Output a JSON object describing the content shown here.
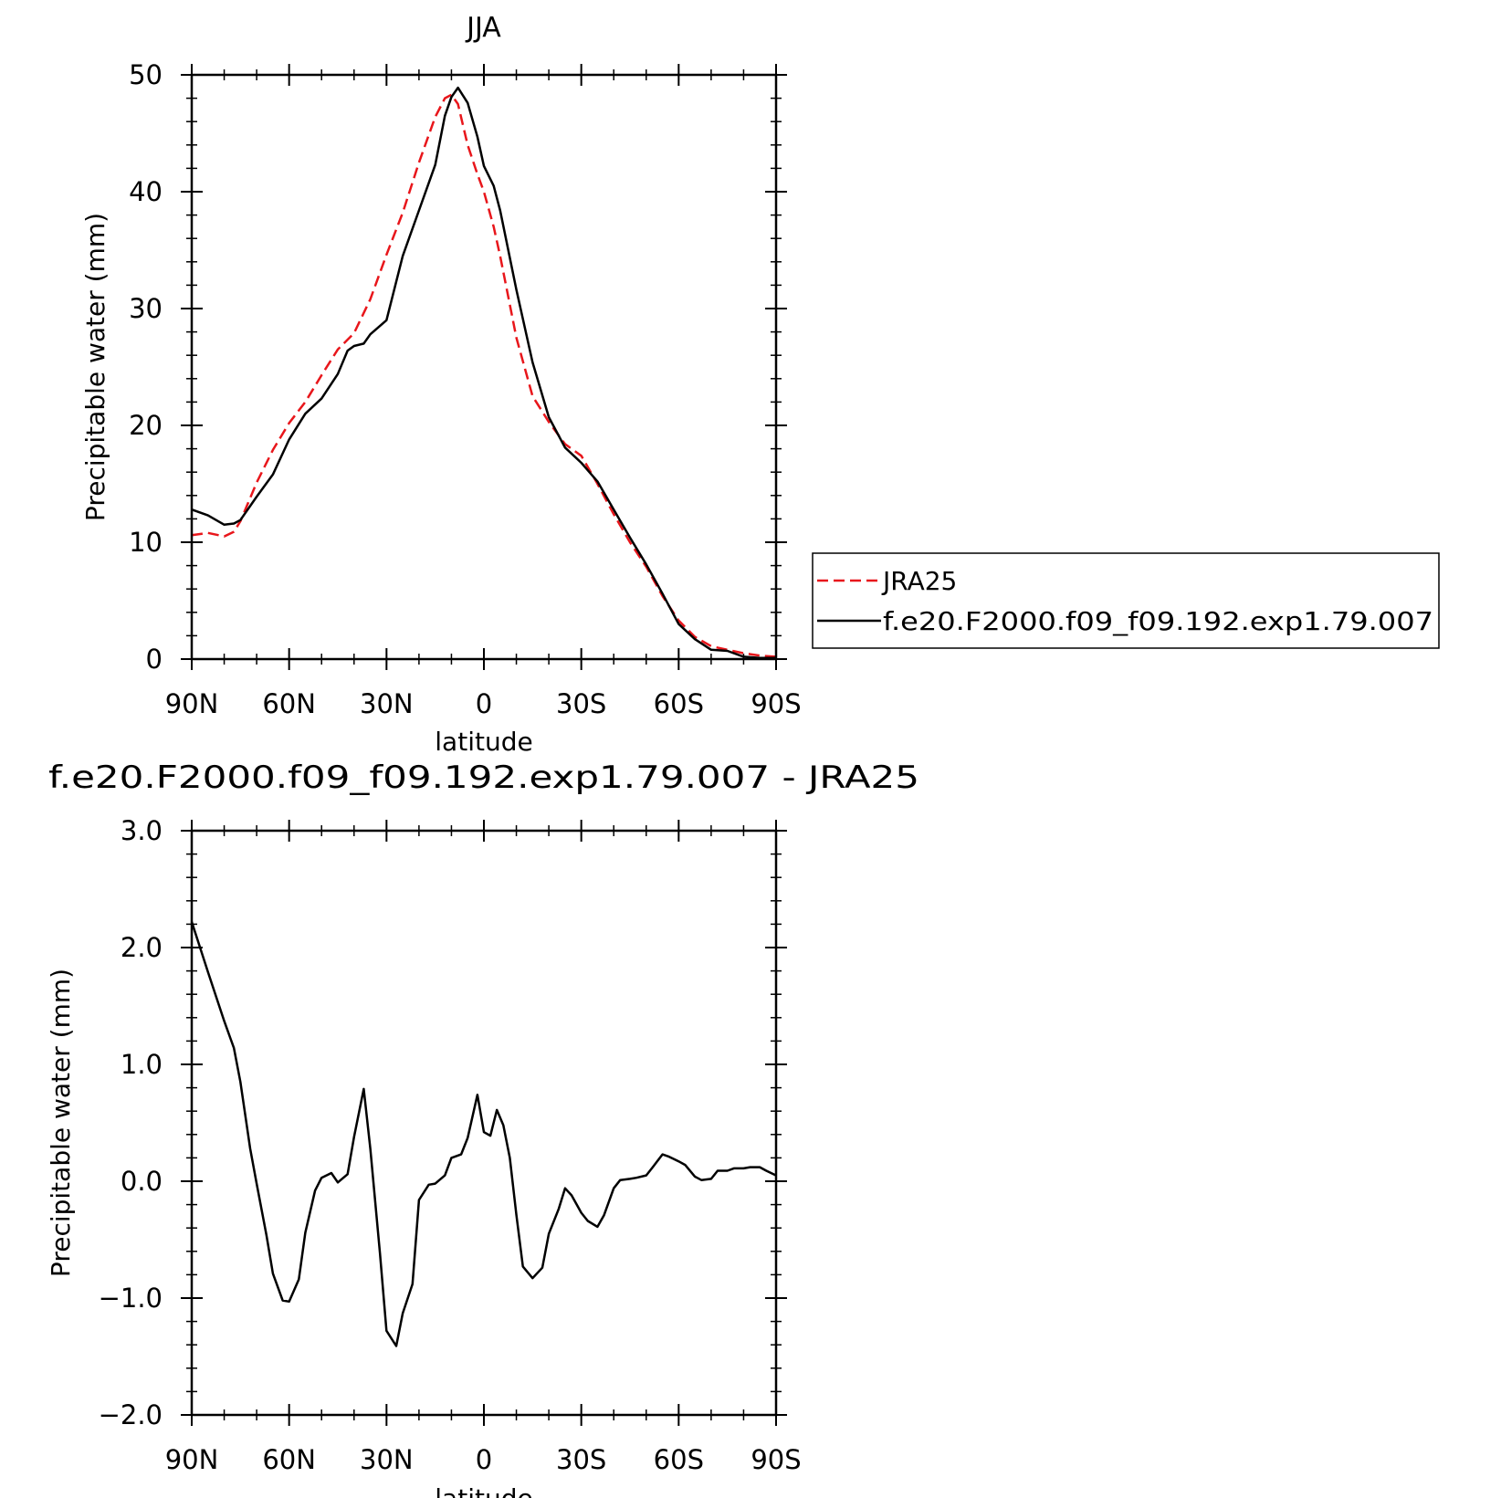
{
  "chart_data": [
    {
      "type": "line",
      "title": "JJA",
      "xlabel": "latitude",
      "ylabel": "Precipitable water (mm)",
      "xlim": [
        90,
        -90
      ],
      "ylim": [
        0,
        50
      ],
      "x_tick_labels": [
        "90N",
        "60N",
        "30N",
        "0",
        "30S",
        "60S",
        "90S"
      ],
      "y_tick_labels": [
        "0",
        "10",
        "20",
        "30",
        "40",
        "50"
      ],
      "legend_placement": "right",
      "series": [
        {
          "name": "JRA25",
          "color": "#e8161b",
          "dash": "dashed",
          "x": [
            90,
            85,
            80,
            77,
            75,
            70,
            65,
            60,
            55,
            50,
            45,
            40,
            35,
            30,
            25,
            20,
            15,
            12,
            10,
            8,
            5,
            2,
            0,
            -3,
            -5,
            -10,
            -15,
            -20,
            -25,
            -30,
            -35,
            -40,
            -45,
            -50,
            -55,
            -60,
            -65,
            -70,
            -75,
            -80,
            -85,
            -90
          ],
          "y": [
            10.6,
            10.8,
            10.5,
            10.9,
            11.8,
            15.1,
            17.9,
            20.2,
            22.0,
            24.3,
            26.5,
            27.9,
            30.8,
            34.6,
            38.2,
            42.5,
            46.4,
            48.0,
            48.3,
            47.5,
            44.0,
            41.5,
            40.0,
            37.0,
            34.5,
            27.5,
            22.5,
            20.3,
            18.4,
            17.4,
            15.0,
            12.4,
            10.0,
            7.9,
            5.4,
            3.3,
            1.9,
            1.1,
            0.8,
            0.5,
            0.3,
            0.2
          ]
        },
        {
          "name": "f.e20.F2000.f09_f09.192.exp1.79.007",
          "color": "#000000",
          "dash": "solid",
          "x": [
            90,
            85,
            80,
            77,
            75,
            70,
            65,
            60,
            55,
            50,
            45,
            42,
            40,
            37,
            35,
            30,
            25,
            20,
            15,
            12,
            10,
            8,
            5,
            2,
            0,
            -3,
            -5,
            -10,
            -15,
            -20,
            -25,
            -30,
            -35,
            -40,
            -45,
            -50,
            -55,
            -60,
            -65,
            -70,
            -75,
            -80,
            -85,
            -90
          ],
          "y": [
            12.8,
            12.3,
            11.5,
            11.6,
            11.9,
            13.9,
            15.8,
            18.8,
            21.0,
            22.3,
            24.4,
            26.4,
            26.8,
            27.0,
            27.8,
            29.0,
            34.5,
            38.4,
            42.3,
            46.5,
            48.1,
            48.9,
            47.6,
            44.7,
            42.2,
            40.5,
            38.4,
            31.6,
            25.4,
            20.7,
            18.1,
            16.8,
            15.2,
            12.8,
            10.4,
            8.1,
            5.6,
            3.0,
            1.7,
            0.8,
            0.7,
            0.2,
            0.1,
            0.1
          ]
        }
      ]
    },
    {
      "type": "line",
      "title": "f.e20.F2000.f09_f09.192.exp1.79.007 - JRA25",
      "xlabel": "latitude",
      "ylabel": "Precipitable water (mm)",
      "xlim": [
        90,
        -90
      ],
      "ylim": [
        -2.0,
        3.0
      ],
      "x_tick_labels": [
        "90N",
        "60N",
        "30N",
        "0",
        "30S",
        "60S",
        "90S"
      ],
      "y_tick_labels": [
        "−2.0",
        "−1.0",
        "0.0",
        "1.0",
        "2.0",
        "3.0"
      ],
      "series": [
        {
          "color": "#000000",
          "x": [
            90,
            85,
            80,
            77,
            75,
            72,
            70,
            67,
            65,
            62,
            60,
            57,
            55,
            52,
            50,
            47,
            45,
            42,
            40,
            37,
            35,
            32,
            30,
            27,
            25,
            22,
            20,
            17,
            15,
            12,
            10,
            7,
            5,
            2,
            0,
            -2,
            -4,
            -6,
            -8,
            -10,
            -12,
            -15,
            -18,
            -20,
            -23,
            -25,
            -27,
            -30,
            -32,
            -35,
            -37,
            -40,
            -42,
            -45,
            -47,
            -50,
            -52,
            -55,
            -57,
            -60,
            -62,
            -65,
            -67,
            -70,
            -72,
            -75,
            -77,
            -80,
            -82,
            -85,
            -87,
            -90
          ],
          "y": [
            2.22,
            1.79,
            1.37,
            1.14,
            0.85,
            0.28,
            -0.02,
            -0.46,
            -0.79,
            -1.02,
            -1.03,
            -0.84,
            -0.44,
            -0.08,
            0.03,
            0.07,
            -0.01,
            0.06,
            0.38,
            0.79,
            0.28,
            -0.62,
            -1.28,
            -1.41,
            -1.13,
            -0.88,
            -0.16,
            -0.03,
            -0.02,
            0.05,
            0.2,
            0.23,
            0.37,
            0.74,
            0.42,
            0.39,
            0.61,
            0.48,
            0.2,
            -0.29,
            -0.73,
            -0.83,
            -0.74,
            -0.45,
            -0.24,
            -0.06,
            -0.12,
            -0.27,
            -0.34,
            -0.39,
            -0.29,
            -0.06,
            0.01,
            0.02,
            0.03,
            0.05,
            0.12,
            0.23,
            0.21,
            0.17,
            0.14,
            0.04,
            0.01,
            0.02,
            0.09,
            0.09,
            0.11,
            0.11,
            0.12,
            0.12,
            0.09,
            0.05
          ]
        }
      ]
    }
  ],
  "legend": {
    "items": [
      {
        "label": "JRA25",
        "color": "#e8161b",
        "dash": "dashed"
      },
      {
        "label": "f.e20.F2000.f09_f09.192.exp1.79.007",
        "color": "#000000",
        "dash": "solid"
      }
    ]
  }
}
